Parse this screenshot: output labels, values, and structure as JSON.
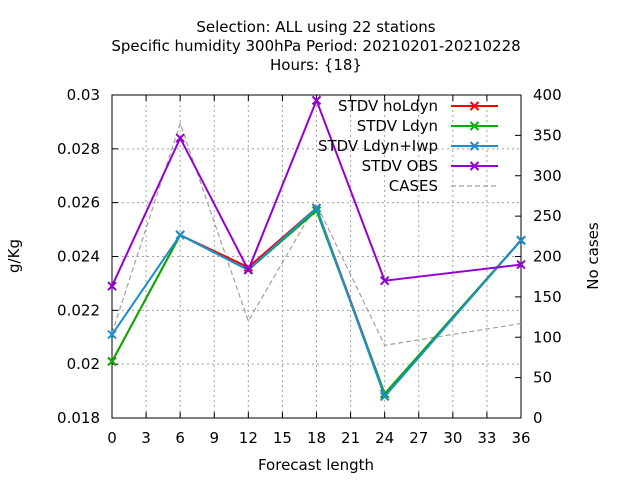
{
  "chart_data": {
    "type": "line",
    "title_lines": [
      "Selection: ALL using    22 stations",
      "Specific humidity 300hPa   Period: 20210201-20210228",
      "Hours: {18}"
    ],
    "xlabel": "Forecast length",
    "ylabel": "g/Kg",
    "y2label": "No cases",
    "xlim": [
      0,
      36
    ],
    "ylim": [
      0.018,
      0.03
    ],
    "y2lim": [
      0,
      400
    ],
    "xticks": [
      "0",
      "3",
      "6",
      "9",
      "12",
      "15",
      "18",
      "21",
      "24",
      "27",
      "30",
      "33",
      "36"
    ],
    "yticks": [
      "0.018",
      "0.02",
      "0.022",
      "0.024",
      "0.026",
      "0.028",
      "0.03"
    ],
    "y2ticks": [
      "0",
      "50",
      "100",
      "150",
      "200",
      "250",
      "300",
      "350",
      "400"
    ],
    "grid": true,
    "legend_position": "top-right",
    "x": [
      0,
      6,
      12,
      18,
      24,
      36
    ],
    "series": [
      {
        "name": "STDV noLdyn",
        "color": "#ff0000",
        "axis": "y1",
        "style": "solid",
        "marker": "x",
        "values": [
          0.0201,
          0.0248,
          0.0236,
          0.0258,
          0.0189,
          0.0246
        ]
      },
      {
        "name": "STDV Ldyn",
        "color": "#00b000",
        "axis": "y1",
        "style": "solid",
        "marker": "x",
        "values": [
          0.0201,
          0.0248,
          0.0235,
          0.0257,
          0.0189,
          0.0246
        ]
      },
      {
        "name": "STDV Ldyn+Iwp",
        "color": "#1a8fd0",
        "axis": "y1",
        "style": "solid",
        "marker": "x",
        "values": [
          0.0211,
          0.0248,
          0.0235,
          0.0258,
          0.0188,
          0.0246
        ]
      },
      {
        "name": "STDV OBS",
        "color": "#9400d3",
        "axis": "y1",
        "style": "solid",
        "marker": "x",
        "values": [
          0.0229,
          0.0284,
          0.0235,
          0.0298,
          0.0231,
          0.0237
        ]
      },
      {
        "name": "CASES",
        "color": "#a0a0a0",
        "axis": "y2",
        "style": "dashed",
        "marker": "none",
        "values": [
          105,
          365,
          120,
          265,
          90,
          117
        ]
      }
    ]
  }
}
